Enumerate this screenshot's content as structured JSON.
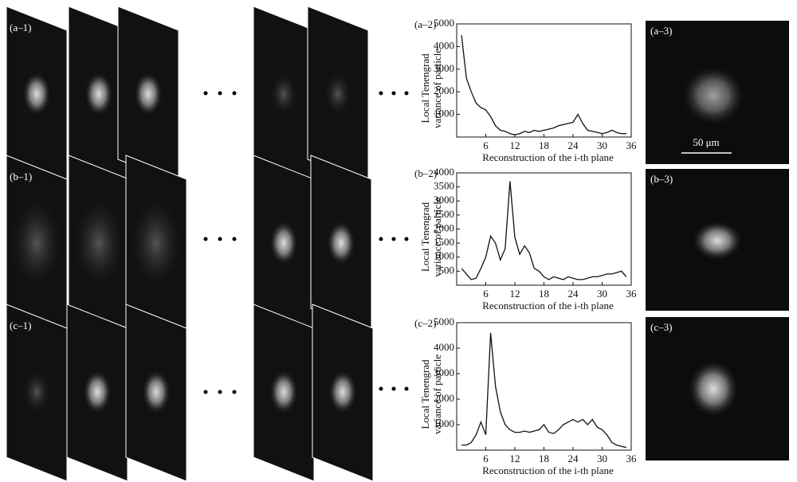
{
  "stack_labels": [
    "(a–1)",
    "(b–1)",
    "(c–1)"
  ],
  "image_labels": [
    "(a–3)",
    "(b–3)",
    "(c–3)"
  ],
  "scale_bar": "50 μm",
  "chart_data": [
    {
      "type": "line",
      "title": "(a–2)",
      "xlabel": "Reconstruction of the i-th plane",
      "ylabel": [
        "Local Tenengrad",
        "variance of particle"
      ],
      "x": [
        1,
        2,
        3,
        4,
        5,
        6,
        7,
        8,
        9,
        10,
        11,
        12,
        13,
        14,
        15,
        16,
        17,
        18,
        19,
        20,
        21,
        22,
        23,
        24,
        25,
        26,
        27,
        28,
        29,
        30,
        31,
        32,
        33,
        34,
        35
      ],
      "series": [
        {
          "name": "a",
          "color": "#111111",
          "values": [
            4500,
            2600,
            2000,
            1500,
            1300,
            1200,
            900,
            500,
            300,
            250,
            150,
            100,
            150,
            250,
            200,
            300,
            250,
            300,
            350,
            400,
            500,
            550,
            600,
            650,
            1000,
            600,
            300,
            250,
            200,
            150,
            200,
            300,
            200,
            150,
            150
          ]
        }
      ],
      "xlim": [
        0,
        36
      ],
      "xticks": [
        6,
        12,
        18,
        24,
        30,
        36
      ],
      "ylim": [
        0,
        5000
      ],
      "yticks": [
        1000,
        2000,
        3000,
        4000,
        5000
      ]
    },
    {
      "type": "line",
      "title": "(b–2)",
      "xlabel": "Reconstruction of the i-th plane",
      "ylabel": [
        "Local Tenengrad",
        "variance of particle"
      ],
      "x": [
        1,
        2,
        3,
        4,
        5,
        6,
        7,
        8,
        9,
        10,
        11,
        12,
        13,
        14,
        15,
        16,
        17,
        18,
        19,
        20,
        21,
        22,
        23,
        24,
        25,
        26,
        27,
        28,
        29,
        30,
        31,
        32,
        33,
        34,
        35
      ],
      "series": [
        {
          "name": "b",
          "color": "#111111",
          "values": [
            600,
            400,
            200,
            250,
            600,
            1000,
            1750,
            1500,
            900,
            1300,
            3700,
            1700,
            1100,
            1400,
            1150,
            600,
            500,
            300,
            200,
            300,
            250,
            200,
            300,
            250,
            200,
            200,
            250,
            300,
            300,
            350,
            400,
            400,
            450,
            500,
            300
          ]
        }
      ],
      "xlim": [
        0,
        36
      ],
      "xticks": [
        6,
        12,
        18,
        24,
        30,
        36
      ],
      "ylim": [
        0,
        4000
      ],
      "yticks": [
        500,
        1000,
        1500,
        2000,
        2500,
        3000,
        3500,
        4000
      ]
    },
    {
      "type": "line",
      "title": "(c–2)",
      "xlabel": "Reconstruction of the i-th plane",
      "ylabel": [
        "Local Tenengrad",
        "variance of particle"
      ],
      "x": [
        1,
        2,
        3,
        4,
        5,
        6,
        7,
        8,
        9,
        10,
        11,
        12,
        13,
        14,
        15,
        16,
        17,
        18,
        19,
        20,
        21,
        22,
        23,
        24,
        25,
        26,
        27,
        28,
        29,
        30,
        31,
        32,
        33,
        34,
        35
      ],
      "series": [
        {
          "name": "c",
          "color": "#111111",
          "values": [
            200,
            200,
            300,
            600,
            1100,
            600,
            4600,
            2500,
            1500,
            1000,
            800,
            700,
            700,
            750,
            700,
            750,
            800,
            1000,
            700,
            650,
            800,
            1000,
            1100,
            1200,
            1100,
            1200,
            1000,
            1200,
            900,
            800,
            600,
            300,
            200,
            150,
            100
          ]
        }
      ],
      "xlim": [
        0,
        36
      ],
      "xticks": [
        6,
        12,
        18,
        24,
        30,
        36
      ],
      "ylim": [
        0,
        5000
      ],
      "yticks": [
        1000,
        2000,
        3000,
        4000,
        5000
      ]
    }
  ]
}
